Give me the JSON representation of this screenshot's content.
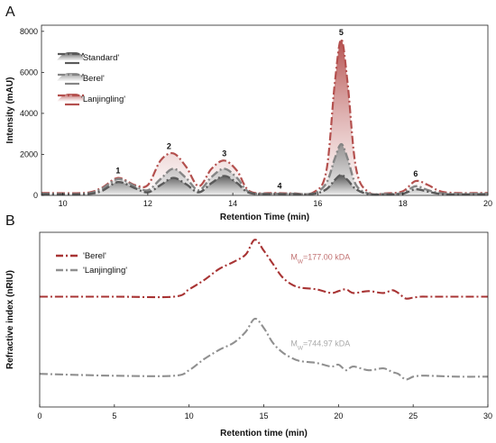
{
  "chart_data": [
    {
      "panel": "A",
      "type": "area",
      "xlabel": "Retention Time (min)",
      "ylabel": "Intensity (mAU)",
      "xlim": [
        9.5,
        20
      ],
      "ylim": [
        0,
        8300
      ],
      "xticks": [
        10,
        12,
        14,
        16,
        18,
        20
      ],
      "yticks": [
        0,
        2000,
        4000,
        6000,
        8000
      ],
      "legend_position": "top-left",
      "series": [
        {
          "name": "'Standard'",
          "color": "#5a5a5a",
          "x": [
            9.5,
            10.5,
            10.9,
            11.3,
            11.7,
            12.0,
            12.3,
            12.6,
            12.9,
            13.2,
            13.5,
            13.8,
            14.1,
            14.4,
            15.0,
            15.4,
            15.9,
            16.2,
            16.4,
            16.55,
            16.7,
            16.9,
            17.2,
            17.6,
            18.0,
            18.3,
            18.6,
            19.0,
            20.0
          ],
          "y": [
            60,
            60,
            200,
            650,
            350,
            150,
            500,
            850,
            550,
            150,
            600,
            950,
            600,
            120,
            70,
            60,
            80,
            300,
            750,
            1000,
            750,
            300,
            60,
            50,
            80,
            300,
            180,
            60,
            60
          ]
        },
        {
          "name": "'Berel'",
          "color": "#858585",
          "x": [
            9.5,
            10.5,
            10.9,
            11.3,
            11.7,
            12.0,
            12.3,
            12.6,
            12.9,
            13.2,
            13.5,
            13.8,
            14.1,
            14.4,
            15.0,
            15.4,
            15.9,
            16.2,
            16.4,
            16.55,
            16.7,
            16.9,
            17.2,
            17.6,
            18.0,
            18.3,
            18.6,
            19.0,
            20.0
          ],
          "y": [
            80,
            80,
            300,
            800,
            450,
            250,
            800,
            1300,
            850,
            250,
            900,
            1300,
            850,
            150,
            80,
            80,
            100,
            600,
            1800,
            2500,
            1800,
            500,
            90,
            70,
            120,
            450,
            250,
            90,
            80
          ]
        },
        {
          "name": "'Lanjingling'",
          "color": "#b4504e",
          "x": [
            9.5,
            10.5,
            10.9,
            11.3,
            11.7,
            12.0,
            12.3,
            12.6,
            12.9,
            13.2,
            13.5,
            13.8,
            14.1,
            14.4,
            15.0,
            15.4,
            15.9,
            16.2,
            16.4,
            16.55,
            16.7,
            16.9,
            17.2,
            17.6,
            18.0,
            18.3,
            18.6,
            19.0,
            20.0
          ],
          "y": [
            120,
            120,
            350,
            850,
            500,
            500,
            1700,
            2050,
            1400,
            450,
            1300,
            1700,
            1200,
            200,
            120,
            100,
            150,
            1200,
            5500,
            7600,
            5500,
            1300,
            150,
            100,
            200,
            700,
            500,
            150,
            120
          ]
        }
      ],
      "annotations": [
        {
          "label": "1",
          "x": 11.3,
          "y": 850
        },
        {
          "label": "2",
          "x": 12.5,
          "y": 2050
        },
        {
          "label": "3",
          "x": 13.8,
          "y": 1700
        },
        {
          "label": "4",
          "x": 15.1,
          "y": 120
        },
        {
          "label": "5",
          "x": 16.55,
          "y": 7600
        },
        {
          "label": "6",
          "x": 18.3,
          "y": 700
        }
      ]
    },
    {
      "panel": "B",
      "type": "line",
      "xlabel": "Retention time (min)",
      "ylabel": "Refractive index (nRIU)",
      "xlim": [
        0,
        30
      ],
      "ylim": [
        -1.5,
        8
      ],
      "xticks": [
        0,
        5,
        10,
        15,
        20,
        25,
        30
      ],
      "legend_position": "top-left",
      "series": [
        {
          "name": "'Berel'",
          "color": "#a83434",
          "x": [
            0,
            5,
            9,
            10,
            11,
            12,
            13,
            13.8,
            14.4,
            15.0,
            15.6,
            16.2,
            16.8,
            17.4,
            18.5,
            19.5,
            20.0,
            20.5,
            21,
            22,
            23,
            23.6,
            24,
            24.5,
            25,
            25.5,
            26,
            28,
            30
          ],
          "y": [
            4.5,
            4.5,
            4.5,
            4.9,
            5.4,
            6.0,
            6.4,
            6.8,
            7.6,
            7.0,
            6.3,
            5.6,
            5.2,
            5.0,
            4.9,
            4.7,
            4.8,
            4.9,
            4.7,
            4.8,
            4.7,
            4.85,
            4.7,
            4.4,
            4.45,
            4.5,
            4.5,
            4.5,
            4.5
          ]
        },
        {
          "name": "'Lanjingling'",
          "color": "#909090",
          "x": [
            0,
            5,
            9,
            10,
            11,
            12,
            13,
            13.8,
            14.4,
            15.0,
            15.6,
            16.2,
            16.8,
            17.4,
            18.5,
            19.5,
            20.0,
            20.5,
            21,
            22,
            23,
            23.6,
            24,
            24.5,
            25,
            25.5,
            26,
            28,
            30
          ],
          "y": [
            0.3,
            0.2,
            0.2,
            0.5,
            1.1,
            1.6,
            2.0,
            2.6,
            3.3,
            2.8,
            2.0,
            1.5,
            1.2,
            1.0,
            0.9,
            0.7,
            0.8,
            0.5,
            0.7,
            0.5,
            0.6,
            0.4,
            0.3,
            0.0,
            0.15,
            0.2,
            0.2,
            0.15,
            0.15
          ]
        }
      ],
      "annotations": [
        {
          "text": "M",
          "sub": "W",
          "value": "=177.00 kDA",
          "color": "#c27272",
          "x": 16.8,
          "y": 6.5
        },
        {
          "text": "M",
          "sub": "W",
          "value": "=744.97 kDA",
          "color": "#aaaaaa",
          "x": 16.8,
          "y": 1.8
        }
      ]
    }
  ]
}
